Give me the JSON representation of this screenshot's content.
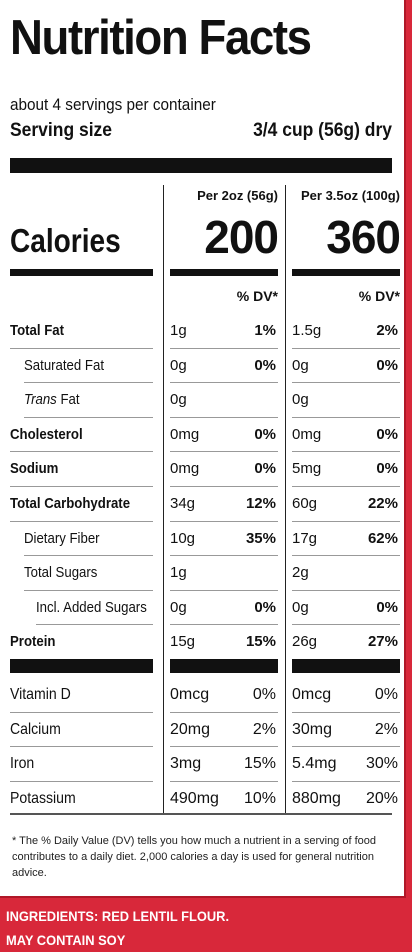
{
  "title": "Nutrition Facts",
  "servings_per_container": "about 4 servings per container",
  "serving_size": {
    "label": "Serving size",
    "value": "3/4 cup (56g) dry"
  },
  "columns": {
    "col1_header": "Per 2oz (56g)",
    "col2_header": "Per 3.5oz (100g)"
  },
  "calories": {
    "label": "Calories",
    "col1": "200",
    "col2": "360"
  },
  "dv_header": "% DV*",
  "nutrients": [
    {
      "name": "Total Fat",
      "bold": true,
      "indent": 0,
      "italic_prefix": "",
      "c1_amt": "1g",
      "c1_dv": "1%",
      "c2_amt": "1.5g",
      "c2_dv": "2%"
    },
    {
      "name": "Saturated Fat",
      "bold": false,
      "indent": 1,
      "italic_prefix": "",
      "c1_amt": "0g",
      "c1_dv": "0%",
      "c2_amt": "0g",
      "c2_dv": "0%"
    },
    {
      "name": "Fat",
      "bold": false,
      "indent": 1,
      "italic_prefix": "Trans",
      "c1_amt": "0g",
      "c1_dv": "",
      "c2_amt": "0g",
      "c2_dv": ""
    },
    {
      "name": "Cholesterol",
      "bold": true,
      "indent": 0,
      "italic_prefix": "",
      "c1_amt": "0mg",
      "c1_dv": "0%",
      "c2_amt": "0mg",
      "c2_dv": "0%"
    },
    {
      "name": "Sodium",
      "bold": true,
      "indent": 0,
      "italic_prefix": "",
      "c1_amt": "0mg",
      "c1_dv": "0%",
      "c2_amt": "5mg",
      "c2_dv": "0%"
    },
    {
      "name": "Total Carbohydrate",
      "bold": true,
      "indent": 0,
      "italic_prefix": "",
      "c1_amt": "34g",
      "c1_dv": "12%",
      "c2_amt": "60g",
      "c2_dv": "22%"
    },
    {
      "name": "Dietary Fiber",
      "bold": false,
      "indent": 1,
      "italic_prefix": "",
      "c1_amt": "10g",
      "c1_dv": "35%",
      "c2_amt": "17g",
      "c2_dv": "62%"
    },
    {
      "name": "Total Sugars",
      "bold": false,
      "indent": 1,
      "italic_prefix": "",
      "c1_amt": "1g",
      "c1_dv": "",
      "c2_amt": "2g",
      "c2_dv": ""
    },
    {
      "name": "Incl. Added Sugars",
      "bold": false,
      "indent": 2,
      "italic_prefix": "",
      "c1_amt": "0g",
      "c1_dv": "0%",
      "c2_amt": "0g",
      "c2_dv": "0%"
    },
    {
      "name": "Protein",
      "bold": true,
      "indent": 0,
      "italic_prefix": "",
      "c1_amt": "15g",
      "c1_dv": "15%",
      "c2_amt": "26g",
      "c2_dv": "27%"
    }
  ],
  "vitamins": [
    {
      "name": "Vitamin D",
      "c1_amt": "0mcg",
      "c1_dv": "0%",
      "c2_amt": "0mcg",
      "c2_dv": "0%"
    },
    {
      "name": "Calcium",
      "c1_amt": "20mg",
      "c1_dv": "2%",
      "c2_amt": "30mg",
      "c2_dv": "2%"
    },
    {
      "name": "Iron",
      "c1_amt": "3mg",
      "c1_dv": "15%",
      "c2_amt": "5.4mg",
      "c2_dv": "30%"
    },
    {
      "name": "Potassium",
      "c1_amt": "490mg",
      "c1_dv": "10%",
      "c2_amt": "880mg",
      "c2_dv": "20%"
    }
  ],
  "footnote": "* The % Daily Value (DV) tells you how much a nutrient in a serving of food contributes to a daily diet. 2,000 calories a day is used for general nutrition advice.",
  "ingredients_line": "INGREDIENTS: RED LENTIL FLOUR.",
  "allergen_line": "MAY CONTAIN SOY",
  "colors": {
    "background_red": "#d8283a",
    "panel": "#ffffff",
    "ink": "#111111"
  }
}
